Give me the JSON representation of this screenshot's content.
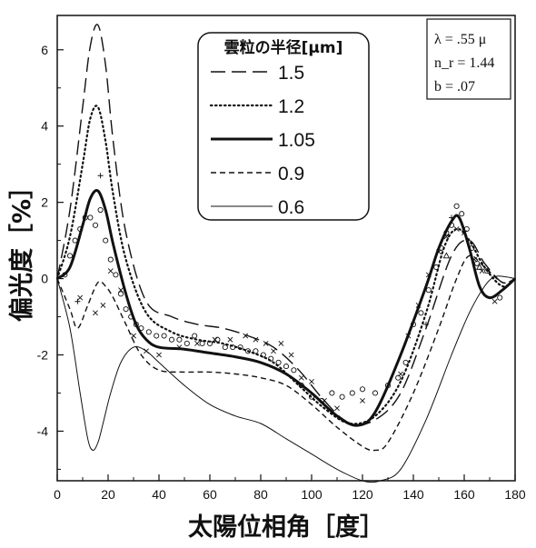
{
  "chart_data": {
    "type": "line",
    "xlabel": "太陽位相角［度］",
    "ylabel": "偏光度［%］",
    "xlim": [
      0,
      180
    ],
    "ylim": [
      -5.3,
      6.9
    ],
    "xticks": [
      "0",
      "20",
      "40",
      "60",
      "80",
      "100",
      "120",
      "140",
      "160",
      "180"
    ],
    "yticks": [
      "-4",
      "-2",
      "0",
      "2",
      "4",
      "6"
    ],
    "legend_title": "雲粒の半径[μm]",
    "legend_position": "top-center",
    "parameters": [
      "λ = .55 μ",
      "n_r = 1.44",
      "b = .07"
    ],
    "series": [
      {
        "name": "1.5",
        "style": "long-dash",
        "x": [
          0,
          5,
          10,
          13,
          16,
          19,
          22,
          27,
          35,
          45,
          55,
          65,
          75,
          85,
          95,
          105,
          115,
          125,
          135,
          145,
          155,
          162,
          168,
          175,
          180
        ],
        "y": [
          0,
          1.8,
          4.5,
          6.1,
          6.65,
          5.6,
          3.6,
          1.2,
          -0.6,
          -1.0,
          -1.2,
          -1.3,
          -1.5,
          -1.8,
          -2.4,
          -3.2,
          -3.8,
          -3.7,
          -3.0,
          -1.3,
          0.6,
          1.0,
          0.4,
          -0.1,
          0
        ]
      },
      {
        "name": "1.2",
        "style": "dotted",
        "x": [
          0,
          5,
          10,
          13,
          16,
          19,
          22,
          27,
          35,
          45,
          55,
          65,
          75,
          85,
          95,
          105,
          115,
          125,
          135,
          145,
          152,
          157,
          162,
          168,
          175,
          180
        ],
        "y": [
          0,
          1.1,
          3.0,
          4.2,
          4.5,
          3.6,
          2.2,
          0.5,
          -0.9,
          -1.4,
          -1.6,
          -1.7,
          -1.9,
          -2.2,
          -2.8,
          -3.4,
          -3.8,
          -3.6,
          -2.7,
          -0.9,
          0.8,
          1.3,
          1.0,
          0.3,
          -0.2,
          0
        ]
      },
      {
        "name": "1.05",
        "style": "solid-bold",
        "x": [
          0,
          5,
          10,
          13,
          16,
          19,
          22,
          27,
          31,
          35,
          40,
          50,
          60,
          70,
          80,
          90,
          100,
          110,
          118,
          125,
          135,
          145,
          150,
          155,
          158,
          162,
          166,
          170,
          175,
          180
        ],
        "y": [
          0,
          0.3,
          1.4,
          2.1,
          2.3,
          1.8,
          0.9,
          -0.4,
          -1.2,
          -1.6,
          -1.8,
          -1.85,
          -1.95,
          -2.05,
          -2.2,
          -2.5,
          -3.0,
          -3.6,
          -3.85,
          -3.5,
          -2.0,
          -0.2,
          0.8,
          1.5,
          1.6,
          0.8,
          -0.2,
          -0.5,
          -0.3,
          0
        ]
      },
      {
        "name": "0.9",
        "style": "short-dash",
        "x": [
          0,
          5,
          8,
          12,
          16,
          19,
          22,
          27,
          33,
          40,
          50,
          60,
          70,
          80,
          90,
          100,
          110,
          120,
          125,
          130,
          140,
          150,
          157,
          162,
          168,
          175,
          180
        ],
        "y": [
          0,
          -0.8,
          -1.3,
          -0.7,
          -0.1,
          -0.2,
          -0.5,
          -1.2,
          -2.0,
          -2.4,
          -2.45,
          -2.45,
          -2.5,
          -2.6,
          -2.8,
          -3.3,
          -3.9,
          -4.4,
          -4.5,
          -4.3,
          -3.0,
          -1.3,
          0.0,
          0.6,
          0.3,
          -0.1,
          0
        ]
      },
      {
        "name": "0.6",
        "style": "thin",
        "x": [
          0,
          5,
          9,
          12,
          14,
          16,
          18,
          21,
          25,
          30,
          35,
          40,
          50,
          60,
          70,
          80,
          90,
          100,
          110,
          120,
          127,
          135,
          145,
          155,
          162,
          168,
          172,
          176,
          180
        ],
        "y": [
          0,
          -1.3,
          -3.0,
          -4.2,
          -4.5,
          -4.3,
          -3.8,
          -3.0,
          -2.2,
          -1.8,
          -1.9,
          -2.2,
          -2.8,
          -3.3,
          -3.6,
          -3.8,
          -4.2,
          -4.6,
          -5.0,
          -5.3,
          -5.3,
          -5.0,
          -3.7,
          -2.0,
          -0.9,
          -0.2,
          0.05,
          0.05,
          0
        ]
      }
    ],
    "observations": {
      "circles": [
        [
          3,
          0.1
        ],
        [
          5,
          0.6
        ],
        [
          7,
          1.0
        ],
        [
          9,
          1.3
        ],
        [
          11,
          1.6
        ],
        [
          13,
          1.6
        ],
        [
          15,
          1.4
        ],
        [
          17,
          1.8
        ],
        [
          19,
          1.0
        ],
        [
          21,
          0.5
        ],
        [
          23,
          0.1
        ],
        [
          25,
          -0.4
        ],
        [
          27,
          -0.8
        ],
        [
          29,
          -1.0
        ],
        [
          31,
          -1.2
        ],
        [
          33,
          -1.3
        ],
        [
          36,
          -1.4
        ],
        [
          39,
          -1.5
        ],
        [
          42,
          -1.5
        ],
        [
          45,
          -1.6
        ],
        [
          48,
          -1.6
        ],
        [
          51,
          -1.7
        ],
        [
          54,
          -1.5
        ],
        [
          57,
          -1.7
        ],
        [
          60,
          -1.7
        ],
        [
          63,
          -1.6
        ],
        [
          66,
          -1.8
        ],
        [
          69,
          -1.8
        ],
        [
          72,
          -1.8
        ],
        [
          75,
          -1.9
        ],
        [
          78,
          -1.9
        ],
        [
          81,
          -2.0
        ],
        [
          84,
          -2.1
        ],
        [
          87,
          -2.2
        ],
        [
          90,
          -2.3
        ],
        [
          93,
          -2.4
        ],
        [
          96,
          -2.8
        ],
        [
          100,
          -3.1
        ],
        [
          104,
          -3.2
        ],
        [
          108,
          -3.0
        ],
        [
          112,
          -3.1
        ],
        [
          116,
          -3.0
        ],
        [
          120,
          -2.9
        ],
        [
          125,
          -3.0
        ],
        [
          130,
          -2.8
        ],
        [
          134,
          -2.6
        ],
        [
          137,
          -2.2
        ],
        [
          140,
          -1.2
        ],
        [
          143,
          -0.9
        ],
        [
          146,
          -0.3
        ],
        [
          149,
          0.3
        ],
        [
          151,
          0.8
        ],
        [
          153,
          1.2
        ],
        [
          155,
          1.4
        ],
        [
          157,
          1.9
        ],
        [
          159,
          1.7
        ],
        [
          161,
          1.3
        ],
        [
          163,
          0.8
        ],
        [
          165,
          0.4
        ],
        [
          169,
          0.2
        ],
        [
          174,
          -0.5
        ]
      ],
      "crosses": [
        [
          9,
          -0.5
        ],
        [
          15,
          -0.9
        ],
        [
          18,
          -0.7
        ],
        [
          21,
          0.2
        ],
        [
          25,
          -0.3
        ],
        [
          30,
          -1.5
        ],
        [
          35,
          -1.9
        ],
        [
          40,
          -2.0
        ],
        [
          48,
          -1.8
        ],
        [
          55,
          -1.7
        ],
        [
          62,
          -1.6
        ],
        [
          68,
          -1.6
        ],
        [
          74,
          -1.5
        ],
        [
          78,
          -1.6
        ],
        [
          82,
          -1.7
        ],
        [
          85,
          -1.9
        ],
        [
          88,
          -1.7
        ],
        [
          92,
          -2.0
        ],
        [
          96,
          -2.6
        ],
        [
          100,
          -2.7
        ],
        [
          105,
          -3.2
        ],
        [
          110,
          -3.4
        ],
        [
          120,
          -3.2
        ],
        [
          135,
          -2.5
        ],
        [
          138,
          -1.5
        ],
        [
          142,
          -0.7
        ],
        [
          146,
          0.1
        ],
        [
          150,
          0.7
        ],
        [
          153,
          1.1
        ],
        [
          157,
          1.3
        ],
        [
          160,
          1.2
        ],
        [
          164,
          0.5
        ],
        [
          167,
          0.2
        ],
        [
          172,
          -0.6
        ]
      ],
      "plus": [
        [
          8,
          -0.6
        ],
        [
          17,
          2.7
        ],
        [
          145,
          -1.2
        ],
        [
          155,
          1.6
        ]
      ],
      "triangles": [
        [
          153,
          0.6
        ],
        [
          166,
          0.3
        ]
      ]
    }
  }
}
